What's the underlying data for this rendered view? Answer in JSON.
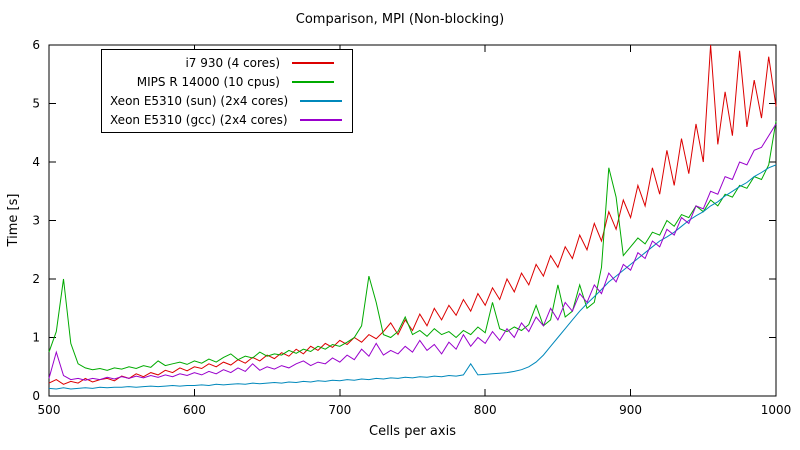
{
  "chart_data": {
    "type": "line",
    "title": "Comparison, MPI (Non-blocking)",
    "xlabel": "Cells per axis",
    "ylabel": "Time [s]",
    "xlim": [
      500,
      1000
    ],
    "ylim": [
      0,
      6
    ],
    "xticks": [
      500,
      600,
      700,
      800,
      900,
      1000
    ],
    "yticks": [
      0,
      1,
      2,
      3,
      4,
      5,
      6
    ],
    "grid": false,
    "legend_position": "top-left",
    "x": [
      500,
      505,
      510,
      515,
      520,
      525,
      530,
      535,
      540,
      545,
      550,
      555,
      560,
      565,
      570,
      575,
      580,
      585,
      590,
      595,
      600,
      605,
      610,
      615,
      620,
      625,
      630,
      635,
      640,
      645,
      650,
      655,
      660,
      665,
      670,
      675,
      680,
      685,
      690,
      695,
      700,
      705,
      710,
      715,
      720,
      725,
      730,
      735,
      740,
      745,
      750,
      755,
      760,
      765,
      770,
      775,
      780,
      785,
      790,
      795,
      800,
      805,
      810,
      815,
      820,
      825,
      830,
      835,
      840,
      845,
      850,
      855,
      860,
      865,
      870,
      875,
      880,
      885,
      890,
      895,
      900,
      905,
      910,
      915,
      920,
      925,
      930,
      935,
      940,
      945,
      950,
      955,
      960,
      965,
      970,
      975,
      980,
      985,
      990,
      995,
      1000
    ],
    "series": [
      {
        "name": "i7 930 (4 cores)",
        "color": "#dc0000",
        "values": [
          0.22,
          0.28,
          0.2,
          0.25,
          0.22,
          0.3,
          0.24,
          0.28,
          0.3,
          0.26,
          0.34,
          0.3,
          0.38,
          0.33,
          0.4,
          0.36,
          0.44,
          0.4,
          0.48,
          0.43,
          0.5,
          0.47,
          0.55,
          0.5,
          0.58,
          0.53,
          0.62,
          0.56,
          0.66,
          0.6,
          0.7,
          0.64,
          0.74,
          0.68,
          0.8,
          0.72,
          0.85,
          0.78,
          0.9,
          0.83,
          0.95,
          0.88,
          1.0,
          0.92,
          1.05,
          0.98,
          1.1,
          1.25,
          1.05,
          1.3,
          1.12,
          1.4,
          1.2,
          1.5,
          1.3,
          1.55,
          1.38,
          1.65,
          1.45,
          1.75,
          1.55,
          1.85,
          1.65,
          2.0,
          1.78,
          2.1,
          1.9,
          2.25,
          2.05,
          2.4,
          2.2,
          2.55,
          2.35,
          2.75,
          2.5,
          2.95,
          2.65,
          3.15,
          2.85,
          3.35,
          3.05,
          3.6,
          3.25,
          3.9,
          3.45,
          4.2,
          3.6,
          4.4,
          3.8,
          4.65,
          4.0,
          6.0,
          4.3,
          5.2,
          4.45,
          5.9,
          4.6,
          5.4,
          4.75,
          5.8,
          4.95
        ]
      },
      {
        "name": "MIPS R 14000 (10 cpus)",
        "color": "#00aa00",
        "values": [
          0.75,
          1.1,
          2.0,
          0.9,
          0.55,
          0.48,
          0.45,
          0.47,
          0.44,
          0.48,
          0.46,
          0.5,
          0.47,
          0.52,
          0.49,
          0.6,
          0.52,
          0.55,
          0.58,
          0.54,
          0.6,
          0.56,
          0.63,
          0.58,
          0.66,
          0.72,
          0.62,
          0.68,
          0.65,
          0.75,
          0.68,
          0.72,
          0.7,
          0.78,
          0.73,
          0.8,
          0.76,
          0.85,
          0.8,
          0.88,
          0.85,
          0.92,
          1.0,
          1.2,
          2.05,
          1.6,
          1.05,
          1.0,
          1.1,
          1.35,
          1.05,
          1.12,
          1.02,
          1.15,
          1.05,
          1.1,
          1.0,
          1.12,
          1.05,
          1.18,
          1.08,
          1.6,
          1.15,
          1.1,
          1.18,
          1.12,
          1.22,
          1.55,
          1.2,
          1.3,
          1.9,
          1.35,
          1.45,
          1.9,
          1.5,
          1.6,
          2.2,
          3.9,
          3.4,
          2.4,
          2.55,
          2.7,
          2.6,
          2.8,
          2.75,
          3.0,
          2.9,
          3.1,
          3.05,
          3.25,
          3.15,
          3.35,
          3.25,
          3.45,
          3.4,
          3.6,
          3.55,
          3.75,
          3.7,
          3.95,
          4.7
        ]
      },
      {
        "name": "Xeon E5310 (sun) (2x4 cores)",
        "color": "#0088bb",
        "values": [
          0.13,
          0.12,
          0.14,
          0.12,
          0.13,
          0.14,
          0.13,
          0.15,
          0.14,
          0.15,
          0.15,
          0.16,
          0.15,
          0.16,
          0.17,
          0.16,
          0.17,
          0.18,
          0.17,
          0.18,
          0.18,
          0.19,
          0.18,
          0.2,
          0.19,
          0.2,
          0.21,
          0.2,
          0.22,
          0.21,
          0.22,
          0.23,
          0.22,
          0.24,
          0.23,
          0.25,
          0.24,
          0.26,
          0.25,
          0.27,
          0.26,
          0.28,
          0.27,
          0.29,
          0.28,
          0.3,
          0.29,
          0.31,
          0.3,
          0.32,
          0.31,
          0.33,
          0.32,
          0.34,
          0.33,
          0.35,
          0.34,
          0.36,
          0.55,
          0.36,
          0.37,
          0.38,
          0.39,
          0.4,
          0.42,
          0.45,
          0.5,
          0.58,
          0.7,
          0.85,
          1.0,
          1.15,
          1.3,
          1.45,
          1.58,
          1.7,
          1.82,
          1.95,
          2.05,
          2.15,
          2.25,
          2.35,
          2.45,
          2.55,
          2.65,
          2.72,
          2.8,
          2.9,
          3.0,
          3.08,
          3.15,
          3.25,
          3.32,
          3.42,
          3.5,
          3.58,
          3.65,
          3.75,
          3.82,
          3.9,
          3.95
        ]
      },
      {
        "name": "Xeon E5310 (gcc) (2x4 cores)",
        "color": "#9900cc",
        "values": [
          0.3,
          0.75,
          0.35,
          0.28,
          0.3,
          0.27,
          0.3,
          0.28,
          0.32,
          0.29,
          0.33,
          0.3,
          0.34,
          0.31,
          0.35,
          0.32,
          0.36,
          0.33,
          0.38,
          0.35,
          0.4,
          0.36,
          0.42,
          0.38,
          0.45,
          0.4,
          0.48,
          0.42,
          0.55,
          0.44,
          0.5,
          0.46,
          0.52,
          0.48,
          0.55,
          0.6,
          0.52,
          0.58,
          0.55,
          0.65,
          0.58,
          0.7,
          0.62,
          0.8,
          0.68,
          0.9,
          0.7,
          0.78,
          0.72,
          0.85,
          0.75,
          0.95,
          0.78,
          0.88,
          0.72,
          0.92,
          0.8,
          1.05,
          0.85,
          1.0,
          0.9,
          1.1,
          0.95,
          1.15,
          1.0,
          1.25,
          1.1,
          1.35,
          1.2,
          1.5,
          1.3,
          1.6,
          1.45,
          1.75,
          1.6,
          1.9,
          1.75,
          2.1,
          1.95,
          2.25,
          2.15,
          2.45,
          2.35,
          2.65,
          2.55,
          2.85,
          2.75,
          3.05,
          2.95,
          3.25,
          3.2,
          3.5,
          3.45,
          3.75,
          3.7,
          4.0,
          3.95,
          4.2,
          4.25,
          4.45,
          4.65
        ]
      }
    ]
  }
}
